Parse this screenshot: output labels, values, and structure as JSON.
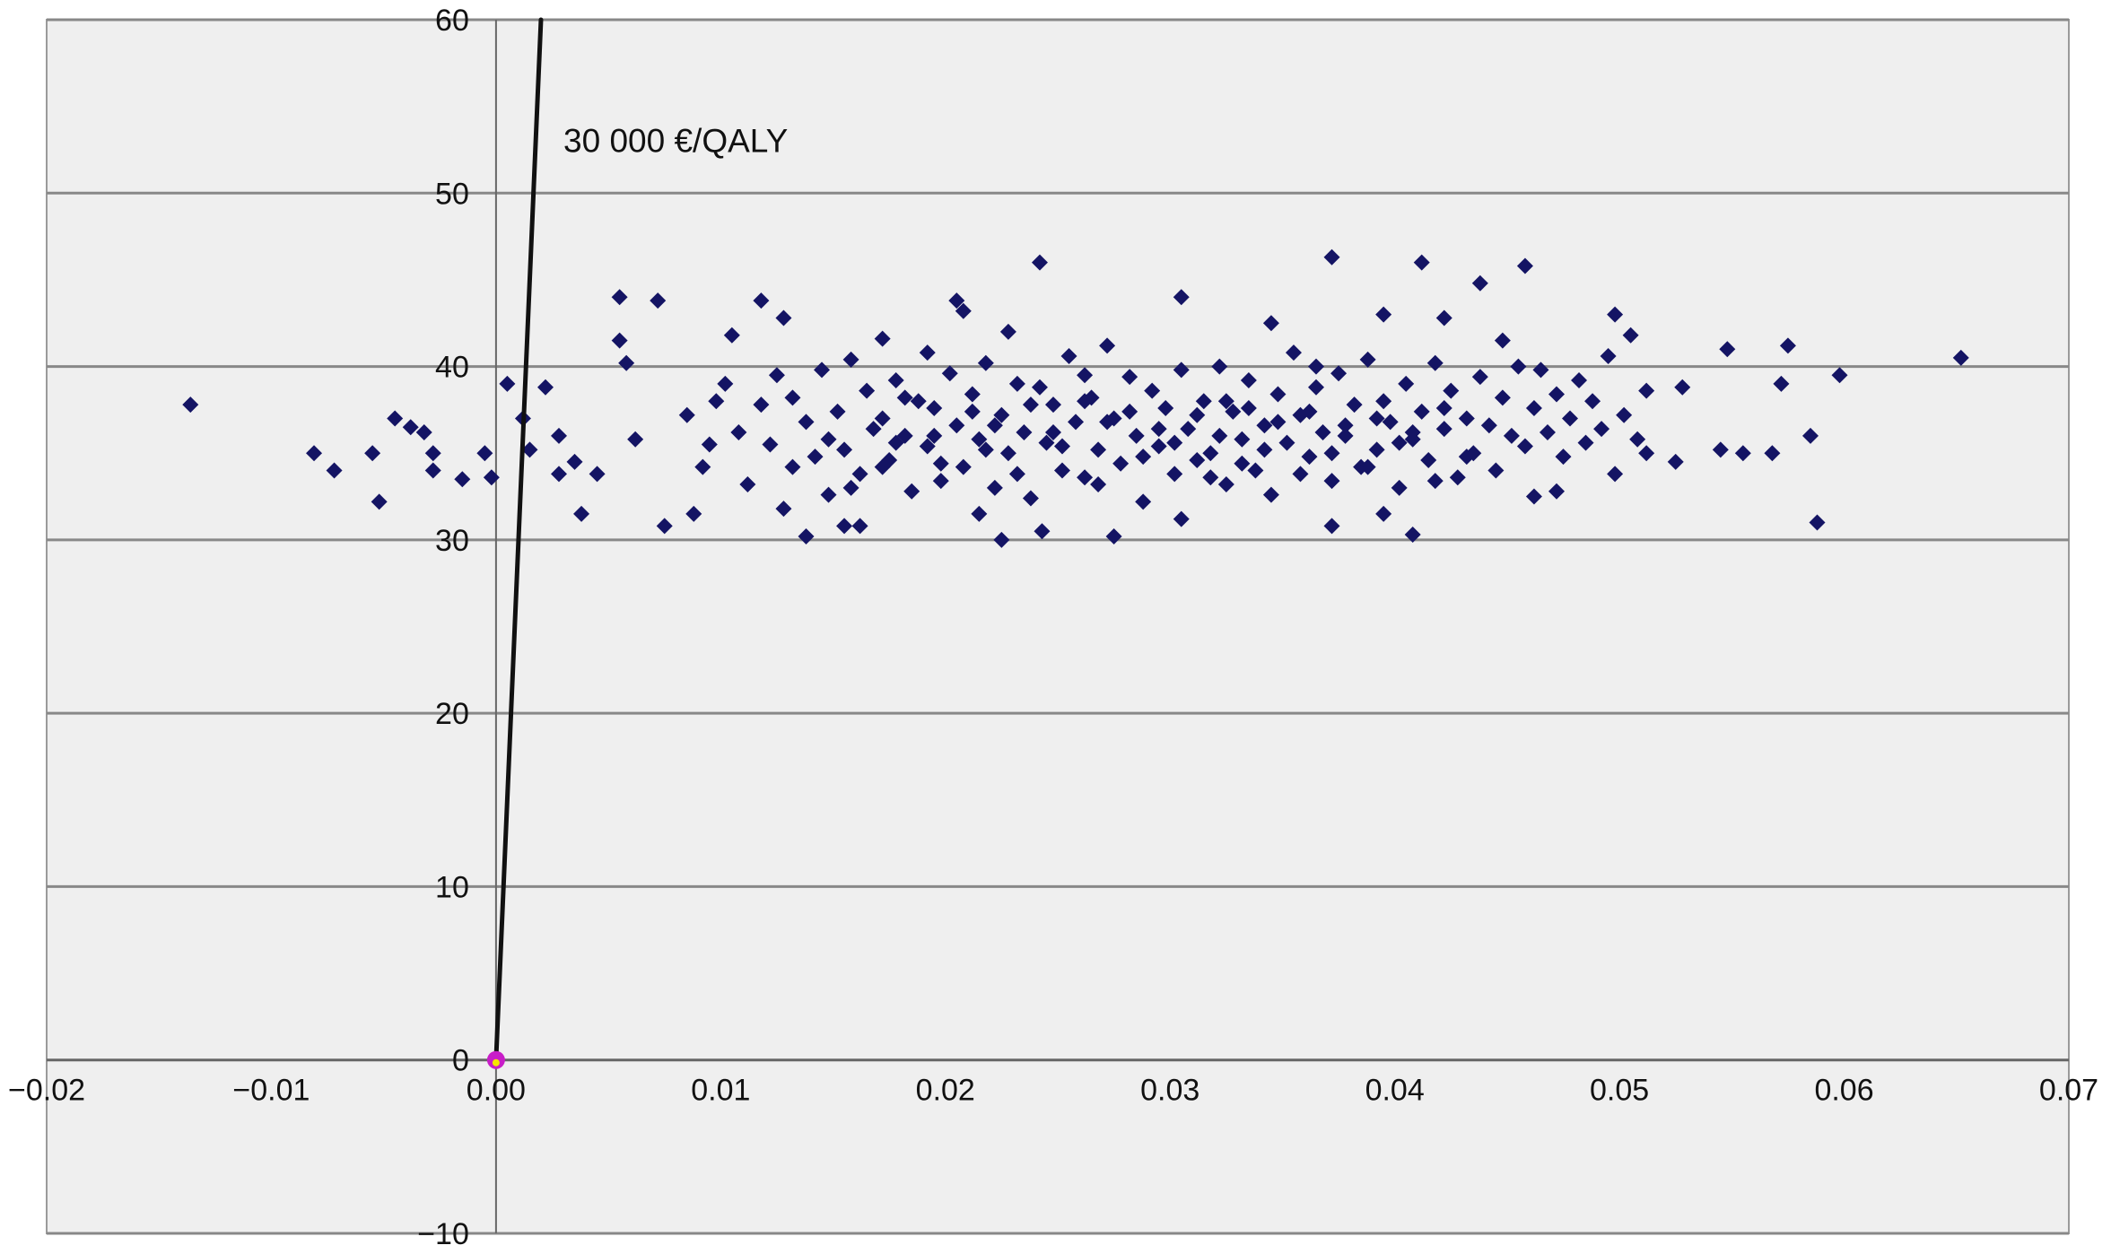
{
  "chart_data": {
    "type": "scatter",
    "title": "",
    "xlabel": "",
    "ylabel": "",
    "xlim": [
      -0.02,
      0.07
    ],
    "ylim": [
      -10,
      60
    ],
    "x_ticks": [
      "−0.02",
      "−0.01",
      "0.00",
      "0.01",
      "0.02",
      "0.03",
      "0.04",
      "0.05",
      "0.06",
      "0.07"
    ],
    "x_tick_values": [
      -0.02,
      -0.01,
      0.0,
      0.01,
      0.02,
      0.03,
      0.04,
      0.05,
      0.06,
      0.07
    ],
    "y_ticks": [
      "−10",
      "0",
      "10",
      "20",
      "30",
      "40",
      "50",
      "60"
    ],
    "y_tick_values": [
      -10,
      0,
      10,
      20,
      30,
      40,
      50,
      60
    ],
    "grid": "horizontal",
    "colors": {
      "background": "#efefef",
      "grid": "#888888",
      "points": "#141464",
      "threshold_line": "#111111",
      "origin_marker": "#c81ec8",
      "origin_marker_center": "#f5e600"
    },
    "threshold_line": {
      "label": "30 000 €/QALY",
      "points": [
        [
          0.0,
          0.0
        ],
        [
          0.002,
          60
        ]
      ]
    },
    "origin_marker": [
      0.0,
      0.0
    ],
    "series": [
      {
        "points": [
          [
            -0.0136,
            37.8
          ],
          [
            -0.0081,
            35.0
          ],
          [
            -0.0072,
            34.0
          ],
          [
            -0.0055,
            35.0
          ],
          [
            -0.0052,
            32.2
          ],
          [
            -0.0045,
            37.0
          ],
          [
            -0.0038,
            36.5
          ],
          [
            -0.0032,
            36.2
          ],
          [
            -0.0028,
            35.0
          ],
          [
            -0.0028,
            34.0
          ],
          [
            -0.0015,
            33.5
          ],
          [
            -0.0005,
            35.0
          ],
          [
            -0.0002,
            33.6
          ],
          [
            0.0005,
            39.0
          ],
          [
            0.0012,
            37.0
          ],
          [
            0.0015,
            35.2
          ],
          [
            0.0022,
            38.8
          ],
          [
            0.0028,
            33.8
          ],
          [
            0.0028,
            36.0
          ],
          [
            0.0035,
            34.5
          ],
          [
            0.0038,
            31.5
          ],
          [
            0.0045,
            33.8
          ],
          [
            0.0055,
            44.0
          ],
          [
            0.0055,
            41.5
          ],
          [
            0.0058,
            40.2
          ],
          [
            0.0062,
            35.8
          ],
          [
            0.0072,
            43.8
          ],
          [
            0.0075,
            30.8
          ],
          [
            0.0088,
            31.5
          ],
          [
            0.0095,
            35.5
          ],
          [
            0.0098,
            38.0
          ],
          [
            0.0105,
            41.8
          ],
          [
            0.0118,
            43.8
          ],
          [
            0.0128,
            42.8
          ],
          [
            0.0125,
            39.5
          ],
          [
            0.0138,
            30.2
          ],
          [
            0.0155,
            30.8
          ],
          [
            0.0162,
            30.8
          ],
          [
            0.0172,
            34.2
          ],
          [
            0.0192,
            40.8
          ],
          [
            0.0205,
            43.8
          ],
          [
            0.0208,
            43.2
          ],
          [
            0.0215,
            31.5
          ],
          [
            0.0225,
            30.0
          ],
          [
            0.0228,
            42.0
          ],
          [
            0.0242,
            46.0
          ],
          [
            0.0243,
            30.5
          ],
          [
            0.0262,
            39.5
          ],
          [
            0.0275,
            30.2
          ],
          [
            0.0305,
            44.0
          ],
          [
            0.0305,
            31.2
          ],
          [
            0.0325,
            38.0
          ],
          [
            0.0345,
            42.5
          ],
          [
            0.0365,
            40.0
          ],
          [
            0.0372,
            46.3
          ],
          [
            0.0372,
            30.8
          ],
          [
            0.0395,
            43.0
          ],
          [
            0.0395,
            31.5
          ],
          [
            0.0408,
            30.3
          ],
          [
            0.0412,
            46.0
          ],
          [
            0.0422,
            42.8
          ],
          [
            0.0438,
            44.8
          ],
          [
            0.0458,
            45.8
          ],
          [
            0.0448,
            41.5
          ],
          [
            0.0462,
            32.5
          ],
          [
            0.0472,
            32.8
          ],
          [
            0.0498,
            43.0
          ],
          [
            0.0498,
            33.8
          ],
          [
            0.0505,
            41.8
          ],
          [
            0.0512,
            35.0
          ],
          [
            0.0528,
            38.8
          ],
          [
            0.0525,
            34.5
          ],
          [
            0.0548,
            41.0
          ],
          [
            0.0545,
            35.2
          ],
          [
            0.0555,
            35.0
          ],
          [
            0.0568,
            35.0
          ],
          [
            0.0572,
            39.0
          ],
          [
            0.0575,
            41.2
          ],
          [
            0.0585,
            36.0
          ],
          [
            0.0588,
            31.0
          ],
          [
            0.0598,
            39.5
          ],
          [
            0.0652,
            40.5
          ],
          [
            0.0085,
            37.2
          ],
          [
            0.0092,
            34.2
          ],
          [
            0.0102,
            39.0
          ],
          [
            0.0108,
            36.2
          ],
          [
            0.0112,
            33.2
          ],
          [
            0.0118,
            37.8
          ],
          [
            0.0122,
            35.5
          ],
          [
            0.0128,
            31.8
          ],
          [
            0.0132,
            38.2
          ],
          [
            0.0138,
            36.8
          ],
          [
            0.0142,
            34.8
          ],
          [
            0.0145,
            39.8
          ],
          [
            0.0148,
            32.6
          ],
          [
            0.0152,
            37.4
          ],
          [
            0.0155,
            35.2
          ],
          [
            0.0158,
            40.4
          ],
          [
            0.0162,
            33.8
          ],
          [
            0.0165,
            38.6
          ],
          [
            0.0168,
            36.4
          ],
          [
            0.0172,
            41.6
          ],
          [
            0.0175,
            34.6
          ],
          [
            0.0178,
            39.2
          ],
          [
            0.0182,
            36.0
          ],
          [
            0.0185,
            32.8
          ],
          [
            0.0188,
            38.0
          ],
          [
            0.0192,
            35.4
          ],
          [
            0.0195,
            37.6
          ],
          [
            0.0198,
            33.4
          ],
          [
            0.0202,
            39.6
          ],
          [
            0.0205,
            36.6
          ],
          [
            0.0208,
            34.2
          ],
          [
            0.0212,
            38.4
          ],
          [
            0.0215,
            35.8
          ],
          [
            0.0218,
            40.2
          ],
          [
            0.0222,
            33.0
          ],
          [
            0.0225,
            37.2
          ],
          [
            0.0228,
            35.0
          ],
          [
            0.0232,
            39.0
          ],
          [
            0.0235,
            36.2
          ],
          [
            0.0238,
            32.4
          ],
          [
            0.0242,
            38.8
          ],
          [
            0.0245,
            35.6
          ],
          [
            0.0248,
            37.8
          ],
          [
            0.0252,
            34.0
          ],
          [
            0.0255,
            40.6
          ],
          [
            0.0258,
            36.8
          ],
          [
            0.0262,
            33.6
          ],
          [
            0.0265,
            38.2
          ],
          [
            0.0268,
            35.2
          ],
          [
            0.0272,
            41.2
          ],
          [
            0.0275,
            37.0
          ],
          [
            0.0278,
            34.4
          ],
          [
            0.0282,
            39.4
          ],
          [
            0.0285,
            36.0
          ],
          [
            0.0288,
            32.2
          ],
          [
            0.0292,
            38.6
          ],
          [
            0.0295,
            35.4
          ],
          [
            0.0298,
            37.6
          ],
          [
            0.0302,
            33.8
          ],
          [
            0.0305,
            39.8
          ],
          [
            0.0308,
            36.4
          ],
          [
            0.0312,
            34.6
          ],
          [
            0.0315,
            38.0
          ],
          [
            0.0318,
            35.0
          ],
          [
            0.0322,
            40.0
          ],
          [
            0.0325,
            33.2
          ],
          [
            0.0328,
            37.4
          ],
          [
            0.0332,
            35.8
          ],
          [
            0.0335,
            39.2
          ],
          [
            0.0338,
            34.0
          ],
          [
            0.0342,
            36.6
          ],
          [
            0.0345,
            32.6
          ],
          [
            0.0348,
            38.4
          ],
          [
            0.0352,
            35.6
          ],
          [
            0.0355,
            40.8
          ],
          [
            0.0358,
            37.2
          ],
          [
            0.0362,
            34.8
          ],
          [
            0.0365,
            38.8
          ],
          [
            0.0368,
            36.2
          ],
          [
            0.0372,
            33.4
          ],
          [
            0.0375,
            39.6
          ],
          [
            0.0378,
            36.0
          ],
          [
            0.0382,
            37.8
          ],
          [
            0.0385,
            34.2
          ],
          [
            0.0388,
            40.4
          ],
          [
            0.0392,
            35.2
          ],
          [
            0.0395,
            38.0
          ],
          [
            0.0398,
            36.8
          ],
          [
            0.0402,
            33.0
          ],
          [
            0.0405,
            39.0
          ],
          [
            0.0408,
            35.8
          ],
          [
            0.0412,
            37.4
          ],
          [
            0.0415,
            34.6
          ],
          [
            0.0418,
            40.2
          ],
          [
            0.0422,
            36.4
          ],
          [
            0.0425,
            38.6
          ],
          [
            0.0428,
            33.6
          ],
          [
            0.0432,
            37.0
          ],
          [
            0.0435,
            35.0
          ],
          [
            0.0438,
            39.4
          ],
          [
            0.0442,
            36.6
          ],
          [
            0.0445,
            34.0
          ],
          [
            0.0448,
            38.2
          ],
          [
            0.0452,
            36.0
          ],
          [
            0.0455,
            40.0
          ],
          [
            0.0458,
            35.4
          ],
          [
            0.0462,
            37.6
          ],
          [
            0.0465,
            39.8
          ],
          [
            0.0468,
            36.2
          ],
          [
            0.0472,
            38.4
          ],
          [
            0.0475,
            34.8
          ],
          [
            0.0478,
            37.0
          ],
          [
            0.0482,
            39.2
          ],
          [
            0.0485,
            35.6
          ],
          [
            0.0488,
            38.0
          ],
          [
            0.0492,
            36.4
          ],
          [
            0.0495,
            40.6
          ],
          [
            0.0502,
            37.2
          ],
          [
            0.0508,
            35.8
          ],
          [
            0.0512,
            38.6
          ],
          [
            0.0172,
            37.0
          ],
          [
            0.0182,
            38.2
          ],
          [
            0.0195,
            36.0
          ],
          [
            0.0212,
            37.4
          ],
          [
            0.0222,
            36.6
          ],
          [
            0.0238,
            37.8
          ],
          [
            0.0248,
            36.2
          ],
          [
            0.0262,
            38.0
          ],
          [
            0.0272,
            36.8
          ],
          [
            0.0282,
            37.4
          ],
          [
            0.0295,
            36.4
          ],
          [
            0.0312,
            37.2
          ],
          [
            0.0322,
            36.0
          ],
          [
            0.0335,
            37.6
          ],
          [
            0.0348,
            36.8
          ],
          [
            0.0362,
            37.4
          ],
          [
            0.0378,
            36.6
          ],
          [
            0.0392,
            37.0
          ],
          [
            0.0408,
            36.2
          ],
          [
            0.0422,
            37.6
          ],
          [
            0.0132,
            34.2
          ],
          [
            0.0148,
            35.8
          ],
          [
            0.0158,
            33.0
          ],
          [
            0.0178,
            35.6
          ],
          [
            0.0198,
            34.4
          ],
          [
            0.0218,
            35.2
          ],
          [
            0.0232,
            33.8
          ],
          [
            0.0252,
            35.4
          ],
          [
            0.0268,
            33.2
          ],
          [
            0.0288,
            34.8
          ],
          [
            0.0302,
            35.6
          ],
          [
            0.0318,
            33.6
          ],
          [
            0.0332,
            34.4
          ],
          [
            0.0342,
            35.2
          ],
          [
            0.0358,
            33.8
          ],
          [
            0.0372,
            35.0
          ],
          [
            0.0388,
            34.2
          ],
          [
            0.0402,
            35.6
          ],
          [
            0.0418,
            33.4
          ],
          [
            0.0432,
            34.8
          ]
        ]
      }
    ]
  }
}
